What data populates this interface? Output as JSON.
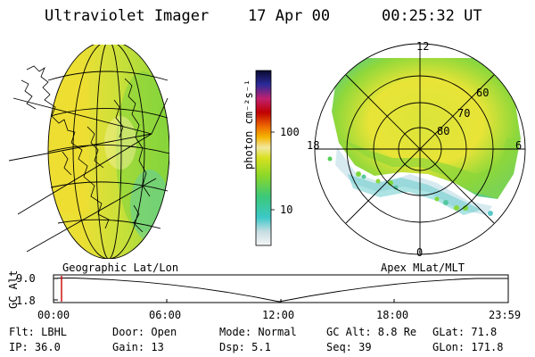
{
  "header": {
    "title": "Ultraviolet Imager",
    "date": "17 Apr 00",
    "time": "00:25:32 UT"
  },
  "colorbar": {
    "unit_label": "photon cm⁻²s⁻¹",
    "ticks": [
      "100",
      "10"
    ]
  },
  "polar_plot": {
    "mlt_labels": {
      "top": "12",
      "left": "18",
      "right": "6",
      "bottom": "0"
    },
    "lat_labels": [
      "60",
      "70",
      "80"
    ]
  },
  "timeline": {
    "left_label": "Geographic Lat/Lon",
    "right_label": "Apex MLat/MLT",
    "axis_title": "GC Alt",
    "y_ticks": [
      "9.0",
      "1.8"
    ],
    "x_ticks": [
      "00:00",
      "06:00",
      "12:00",
      "18:00",
      "23:59"
    ]
  },
  "info": {
    "row1": {
      "filter": "Flt: LBHL",
      "door": "Door: Open",
      "mode": "Mode: Normal",
      "gc_alt": "GC Alt: 8.8 Re",
      "glat": "GLat: 71.8"
    },
    "row2": {
      "ip": "IP: 36.0",
      "gain": "Gain: 13",
      "dsp": "Dsp:    5.1",
      "seq": "Seq: 39",
      "glon": "GLon: 171.8"
    }
  },
  "colors": {
    "aurora_yellow": "#e6e62a",
    "aurora_green": "#7fd21e",
    "aurora_cyan": "#5cc8c8",
    "cursor_red": "#cc0000"
  }
}
